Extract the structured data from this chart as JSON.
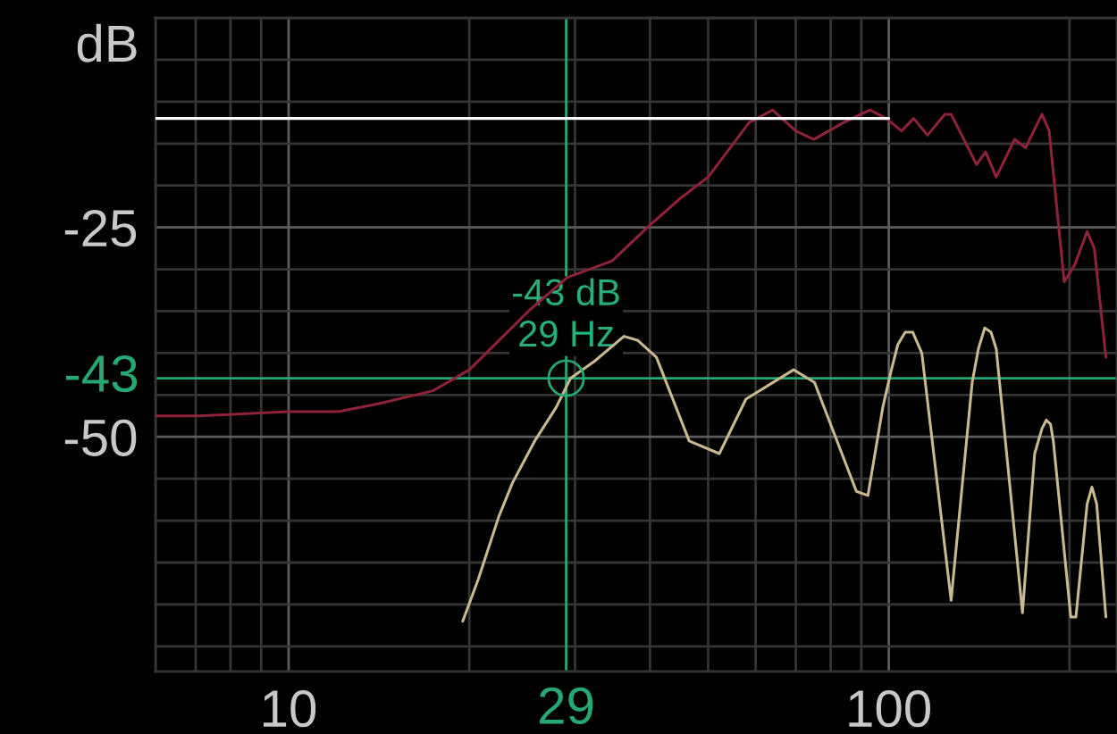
{
  "chart_data": {
    "type": "line",
    "ylabel": "dB",
    "log": "x",
    "xlim": [
      6,
      240
    ],
    "xticks": [
      {
        "value": 6,
        "label": null
      },
      {
        "value": 7,
        "label": null
      },
      {
        "value": 8,
        "label": null
      },
      {
        "value": 9,
        "label": null
      },
      10,
      {
        "value": 20,
        "label": null
      },
      {
        "value": 30,
        "label": null
      },
      {
        "value": 40,
        "label": null
      },
      {
        "value": 50,
        "label": null
      },
      {
        "value": 60,
        "label": null
      },
      {
        "value": 70,
        "label": null
      },
      {
        "value": 80,
        "label": null
      },
      {
        "value": 90,
        "label": null
      },
      100,
      {
        "value": 200,
        "label": null
      }
    ],
    "ylim": [
      -78,
      0
    ],
    "yticks": [
      {
        "value": 0,
        "label": null
      },
      {
        "value": -5,
        "label": null
      },
      {
        "value": -10,
        "label": null
      },
      {
        "value": -15,
        "label": null
      },
      {
        "value": -20,
        "label": null
      },
      -25,
      {
        "value": -30,
        "label": null
      },
      {
        "value": -35,
        "label": null
      },
      {
        "value": -40,
        "label": null
      },
      {
        "value": -45,
        "label": null
      },
      -50,
      {
        "value": -55,
        "label": null
      },
      {
        "value": -60,
        "label": null
      },
      {
        "value": -65,
        "label": null
      },
      {
        "value": -70,
        "label": null
      },
      {
        "value": -75,
        "label": null
      }
    ],
    "grid": true,
    "series": [
      {
        "color": "#8e2238",
        "x": [
          6,
          7.1,
          10,
          12.1,
          14.2,
          17.4,
          20,
          25.1,
          29.1,
          34.6,
          39.6,
          45,
          50,
          58.5,
          64,
          70,
          75,
          84,
          93,
          99,
          105,
          110,
          116,
          124,
          127,
          140,
          145,
          151,
          162,
          169,
          180,
          185,
          196,
          204,
          214,
          220,
          230
        ],
        "values": [
          -47.5,
          -47.5,
          -47,
          -47,
          -46,
          -44.5,
          -42,
          -35,
          -31,
          -29,
          -25,
          -21.5,
          -19,
          -12.5,
          -11,
          -13.5,
          -14.5,
          -12.5,
          -11,
          -12,
          -13.5,
          -12,
          -14,
          -11.5,
          -11.5,
          -17.5,
          -16,
          -19,
          -14.5,
          -15.5,
          -11.5,
          -13.5,
          -31.5,
          -29.5,
          -25.5,
          -27.5,
          -40.5
        ]
      },
      {
        "color": "#c9b98e",
        "x": [
          19.5,
          20.7,
          22.4,
          23.6,
          25.7,
          27.9,
          29.5,
          32.3,
          36.2,
          38.2,
          41,
          46.5,
          52.2,
          57.8,
          69.4,
          75.2,
          88.3,
          92.3,
          97.7,
          101,
          103.5,
          106.5,
          109.6,
          113.5,
          127,
          137.7,
          141,
          144.5,
          148,
          151,
          167,
          175,
          180,
          183,
          186,
          188,
          201,
          205,
          214,
          218,
          222,
          230
        ],
        "values": [
          -72,
          -67,
          -59.5,
          -55.5,
          -50.5,
          -46.5,
          -43,
          -41,
          -38,
          -38.5,
          -40.5,
          -50.5,
          -52,
          -45.5,
          -42,
          -43.5,
          -56.5,
          -57,
          -46.5,
          -42,
          -39,
          -37.5,
          -37.5,
          -40,
          -69.5,
          -43.5,
          -39.5,
          -37,
          -37.5,
          -39.5,
          -71,
          -52,
          -49,
          -48,
          -48.5,
          -50.5,
          -71.5,
          -71.5,
          -58,
          -56,
          -58,
          -71.5
        ]
      },
      {
        "color": "#ffffff",
        "x": [
          6,
          100
        ],
        "values": [
          -12,
          -12
        ]
      },
      {
        "type": "scatter",
        "color": "#25a874",
        "marker": "circle",
        "x": [
          29
        ],
        "values": [
          -43
        ]
      }
    ],
    "ref_lines": [
      {
        "axis": "y",
        "value": -43,
        "label": "-43",
        "color": "#25a874"
      },
      {
        "axis": "x",
        "value": 29,
        "label": "29",
        "color": "#25a874"
      }
    ],
    "annotations": [
      {
        "text": "-43 dB\n29 Hz",
        "x": 29,
        "y": -43
      }
    ]
  }
}
